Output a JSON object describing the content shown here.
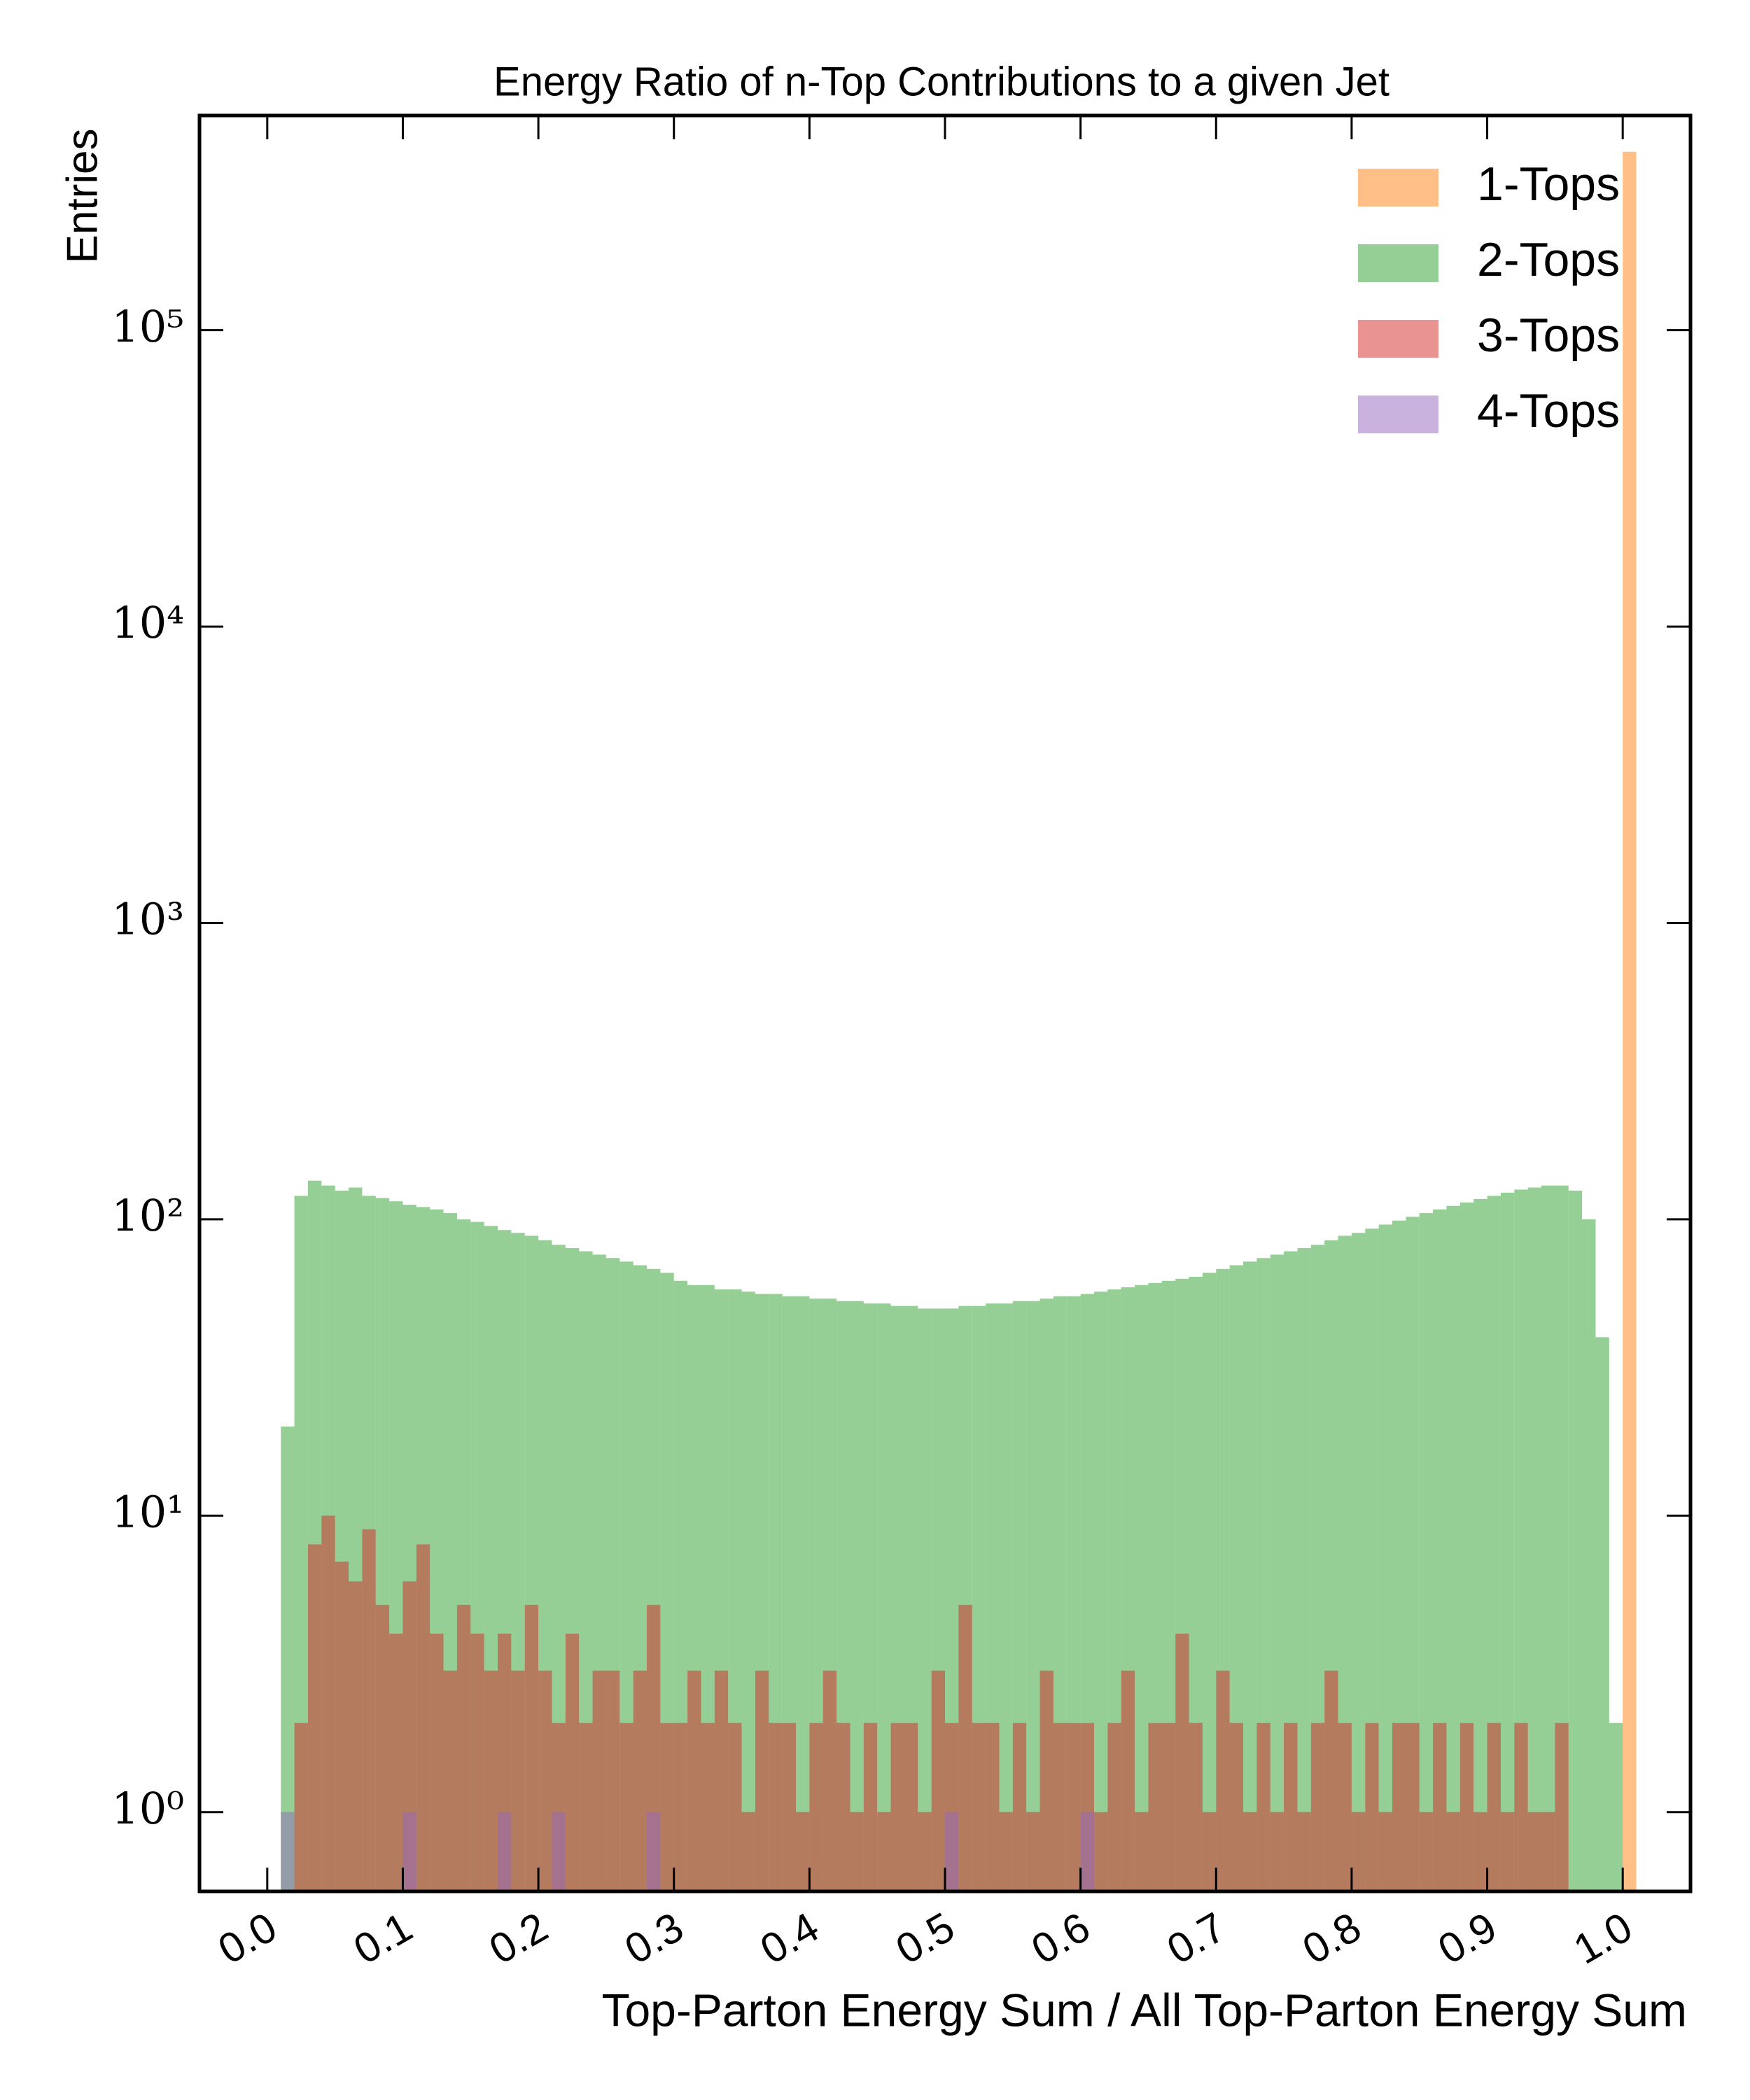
{
  "chart_data": {
    "type": "histogram",
    "title": "Energy Ratio of n-Top Contributions to a given Jet",
    "xlabel": "Top-Parton Energy Sum / All Top-Parton Energy Sum",
    "ylabel": "Entries",
    "bins": [
      0,
      0.01,
      0.02,
      0.03,
      0.04,
      0.05,
      0.06,
      0.07,
      0.08,
      0.09,
      0.1,
      0.11,
      0.12,
      0.13,
      0.14,
      0.15,
      0.16,
      0.17,
      0.18,
      0.19,
      0.2,
      0.21,
      0.22,
      0.23,
      0.24,
      0.25,
      0.26,
      0.27,
      0.28,
      0.29,
      0.3,
      0.31,
      0.32,
      0.33,
      0.34,
      0.35,
      0.36,
      0.37,
      0.38,
      0.39,
      0.4,
      0.41,
      0.42,
      0.43,
      0.44,
      0.45,
      0.46,
      0.47,
      0.48,
      0.49,
      0.5,
      0.51,
      0.52,
      0.53,
      0.54,
      0.55,
      0.56,
      0.57,
      0.58,
      0.59,
      0.6,
      0.61,
      0.62,
      0.63,
      0.64,
      0.65,
      0.66,
      0.67,
      0.68,
      0.69,
      0.7,
      0.71,
      0.72,
      0.73,
      0.74,
      0.75,
      0.76,
      0.77,
      0.78,
      0.79,
      0.8,
      0.81,
      0.82,
      0.83,
      0.84,
      0.85,
      0.86,
      0.87,
      0.88,
      0.89,
      0.9,
      0.91,
      0.92,
      0.93,
      0.94,
      0.95,
      0.96,
      0.97,
      0.98,
      0.99,
      1,
      1.01
    ],
    "series": [
      {
        "name": "1-Tops",
        "color": "#ff7f0e",
        "values": [
          0,
          0,
          0,
          0,
          0,
          0,
          0,
          0,
          0,
          0,
          0,
          0,
          0,
          0,
          0,
          0,
          0,
          0,
          0,
          0,
          0,
          0,
          0,
          0,
          0,
          0,
          0,
          0,
          0,
          0,
          0,
          0,
          0,
          0,
          0,
          0,
          0,
          0,
          0,
          0,
          0,
          0,
          0,
          0,
          0,
          0,
          0,
          0,
          0,
          0,
          0,
          0,
          0,
          0,
          0,
          0,
          0,
          0,
          0,
          0,
          0,
          0,
          0,
          0,
          0,
          0,
          0,
          0,
          0,
          0,
          0,
          0,
          0,
          0,
          0,
          0,
          0,
          0,
          0,
          0,
          0,
          0,
          0,
          0,
          0,
          0,
          0,
          0,
          0,
          0,
          0,
          0,
          0,
          0,
          0,
          0,
          0,
          0,
          0,
          0,
          400000
        ]
      },
      {
        "name": "2-Tops",
        "color": "#2ca02c",
        "values": [
          0,
          20,
          120,
          135,
          130,
          125,
          128,
          120,
          118,
          115,
          112,
          110,
          108,
          105,
          100,
          98,
          95,
          92,
          90,
          88,
          85,
          82,
          80,
          78,
          76,
          74,
          72,
          70,
          68,
          66,
          62,
          60,
          60,
          58,
          58,
          57,
          56,
          56,
          55,
          55,
          54,
          54,
          53,
          53,
          52,
          52,
          51,
          51,
          50,
          50,
          50,
          51,
          51,
          52,
          52,
          53,
          53,
          54,
          55,
          55,
          56,
          57,
          58,
          59,
          60,
          61,
          62,
          63,
          64,
          66,
          68,
          70,
          72,
          74,
          76,
          78,
          80,
          82,
          85,
          88,
          90,
          93,
          96,
          99,
          102,
          105,
          108,
          111,
          114,
          117,
          120,
          123,
          126,
          128,
          130,
          130,
          125,
          100,
          40,
          2,
          0
        ]
      },
      {
        "name": "3-Tops",
        "color": "#d62728",
        "values": [
          0,
          0,
          2,
          8,
          10,
          7,
          6,
          9,
          5,
          4,
          6,
          8,
          4,
          3,
          5,
          4,
          3,
          4,
          3,
          5,
          3,
          2,
          4,
          2,
          3,
          3,
          2,
          3,
          5,
          2,
          2,
          3,
          2,
          3,
          2,
          1,
          3,
          2,
          2,
          1,
          2,
          3,
          2,
          1,
          2,
          1,
          2,
          2,
          1,
          3,
          2,
          5,
          2,
          2,
          1,
          2,
          1,
          3,
          2,
          2,
          2,
          1,
          2,
          3,
          1,
          2,
          2,
          4,
          2,
          1,
          3,
          2,
          1,
          2,
          1,
          2,
          1,
          2,
          3,
          2,
          1,
          2,
          1,
          2,
          2,
          1,
          2,
          1,
          2,
          1,
          2,
          1,
          2,
          1,
          1,
          2,
          0,
          0,
          0,
          0,
          0
        ]
      },
      {
        "name": "4-Tops",
        "color": "#9467bd",
        "values": [
          0,
          1,
          0,
          0,
          0,
          0,
          0,
          0,
          0,
          0,
          1,
          0,
          0,
          0,
          0,
          0,
          0,
          1,
          0,
          0,
          0,
          1,
          0,
          0,
          0,
          0,
          0,
          0,
          1,
          0,
          0,
          0,
          0,
          0,
          0,
          0,
          0,
          0,
          0,
          0,
          0,
          0,
          0,
          0,
          0,
          0,
          0,
          0,
          0,
          0,
          1,
          0,
          0,
          0,
          0,
          0,
          0,
          0,
          0,
          0,
          1,
          0,
          0,
          0,
          0,
          0,
          0,
          0,
          0,
          0,
          0,
          0,
          0,
          0,
          0,
          0,
          0,
          0,
          0,
          0,
          0,
          0,
          0,
          0,
          0,
          0,
          0,
          0,
          0,
          0,
          0,
          0,
          0,
          0,
          0,
          0,
          0,
          0,
          0,
          0,
          0
        ]
      }
    ],
    "alpha": 0.5,
    "xlim": [
      -0.05,
      1.05
    ],
    "ylim": [
      0.54,
      530000
    ],
    "xticks": [
      {
        "value": 0,
        "label": "0.0"
      },
      0.1,
      0.2,
      0.3,
      0.4,
      0.5,
      0.6,
      0.7,
      0.8,
      0.9,
      {
        "value": 1,
        "label": "1.0"
      }
    ],
    "yticks": [
      {
        "value": 1,
        "label": "10⁰"
      },
      {
        "value": 10,
        "label": "10¹"
      },
      {
        "value": 100,
        "label": "10²"
      },
      {
        "value": 1000,
        "label": "10³"
      },
      {
        "value": 10000,
        "label": "10⁴"
      },
      {
        "value": 100000,
        "label": "10⁵"
      }
    ],
    "log_y": true,
    "legend": "upper right"
  }
}
